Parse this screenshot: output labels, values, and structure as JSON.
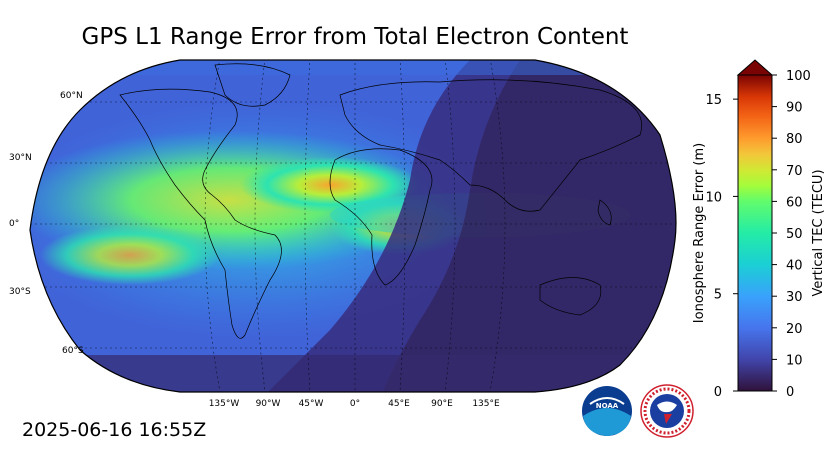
{
  "title": "GPS L1 Range Error from Total Electron Content",
  "timestamp": "2025-06-16 16:55Z",
  "map": {
    "projection": "robinson",
    "lat_labels": [
      "60°N",
      "30°N",
      "0°",
      "30°S",
      "60°S"
    ],
    "lon_labels": [
      "135°W",
      "90°W",
      "45°W",
      "0°",
      "45°E",
      "90°E",
      "135°E"
    ]
  },
  "colorbar": {
    "left_axis_label": "Ionosphere Range Error (m)",
    "right_axis_label": "Vertical TEC (TECU)",
    "left_ticks": [
      "0",
      "5",
      "10",
      "15"
    ],
    "right_ticks": [
      "0",
      "10",
      "20",
      "30",
      "40",
      "50",
      "60",
      "70",
      "80",
      "90",
      "100"
    ],
    "range_tecu": [
      0,
      100
    ],
    "extend": "max",
    "colormap": "turbo",
    "colors": {
      "low": "#30123b",
      "mid": "#1ae4b6",
      "high": "#7a0403"
    }
  },
  "logos": {
    "noaa": "NOAA",
    "nws": "NATIONAL WEATHER SERVICE"
  }
}
